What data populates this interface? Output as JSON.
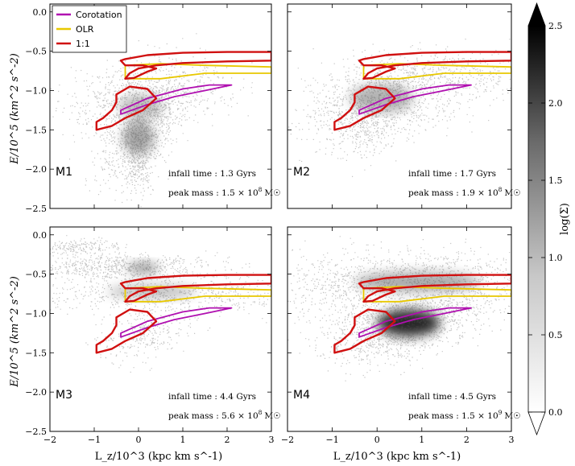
{
  "chart_data": {
    "type": "scatter",
    "layout": "2x2 panels, shared axes",
    "xlabel": "L_z/10^3 (kpc km s^-1)",
    "ylabel": "E/10^5 (km^2 s^-2)",
    "xlim": [
      -2,
      3
    ],
    "ylim": [
      -2.5,
      0.1
    ],
    "xticks": [
      -2,
      -1,
      0,
      1,
      2,
      3
    ],
    "yticks": [
      0.0,
      -0.5,
      -1.0,
      -1.5,
      -2.0,
      -2.5
    ],
    "legend": {
      "placement": "top-left of first panel",
      "entries": [
        {
          "label": "Corotation",
          "color": "#b010b0"
        },
        {
          "label": "OLR",
          "color": "#e8c800"
        },
        {
          "label": "1:1",
          "color": "#d01010"
        }
      ]
    },
    "colorbar": {
      "label": "log(Σ)",
      "range": [
        0.0,
        2.5
      ],
      "ticks": [
        0.0,
        0.5,
        1.0,
        1.5,
        2.0,
        2.5
      ],
      "colormap": "gray_r",
      "extend": "both"
    },
    "resonance_contours": {
      "corotation": [
        [
          -0.4,
          -1.25
        ],
        [
          0.2,
          -1.1
        ],
        [
          1.0,
          -0.98
        ],
        [
          1.6,
          -0.93
        ],
        [
          2.1,
          -0.93
        ],
        [
          1.5,
          -1.0
        ],
        [
          0.8,
          -1.08
        ],
        [
          0.2,
          -1.18
        ],
        [
          -0.4,
          -1.3
        ]
      ],
      "olr": [
        [
          -0.3,
          -0.68
        ],
        [
          0.5,
          -0.66
        ],
        [
          1.5,
          -0.68
        ],
        [
          3.0,
          -0.7
        ],
        [
          3.0,
          -0.78
        ],
        [
          1.5,
          -0.78
        ],
        [
          0.5,
          -0.85
        ],
        [
          -0.3,
          -0.85
        ]
      ],
      "one_to_one_upper": [
        [
          -0.3,
          -0.6
        ],
        [
          0.2,
          -0.55
        ],
        [
          1.0,
          -0.52
        ],
        [
          2.0,
          -0.51
        ],
        [
          3.0,
          -0.51
        ],
        [
          3.0,
          -0.62
        ],
        [
          2.0,
          -0.63
        ],
        [
          1.0,
          -0.65
        ],
        [
          0.4,
          -0.68
        ],
        [
          0.0,
          -0.72
        ],
        [
          -0.2,
          -0.78
        ],
        [
          -0.3,
          -0.85
        ],
        [
          -0.1,
          -0.84
        ],
        [
          0.2,
          -0.76
        ],
        [
          0.4,
          -0.72
        ],
        [
          0.1,
          -0.68
        ],
        [
          -0.3,
          -0.68
        ],
        [
          -0.4,
          -0.62
        ]
      ],
      "one_to_one_lower": [
        [
          -0.5,
          -1.05
        ],
        [
          -0.2,
          -0.95
        ],
        [
          0.2,
          -0.98
        ],
        [
          0.4,
          -1.1
        ],
        [
          0.1,
          -1.25
        ],
        [
          -0.3,
          -1.35
        ],
        [
          -0.6,
          -1.45
        ],
        [
          -0.95,
          -1.5
        ],
        [
          -0.95,
          -1.4
        ],
        [
          -0.8,
          -1.35
        ],
        [
          -0.6,
          -1.25
        ],
        [
          -0.5,
          -1.15
        ]
      ]
    },
    "panels": [
      {
        "name": "M1",
        "infall_label": "infall time",
        "infall_value": "1.3 Gyrs",
        "peak_label": "peak mass",
        "peak_value": "1.5 × 10",
        "peak_exp": "8",
        "peak_unit": "M☉"
      },
      {
        "name": "M2",
        "infall_label": "infall time",
        "infall_value": "1.7 Gyrs",
        "peak_label": "peak mass",
        "peak_value": "1.9 × 10",
        "peak_exp": "8",
        "peak_unit": "M☉"
      },
      {
        "name": "M3",
        "infall_label": "infall time",
        "infall_value": "4.4 Gyrs",
        "peak_label": "peak mass",
        "peak_value": "5.6 × 10",
        "peak_exp": "8",
        "peak_unit": "M☉"
      },
      {
        "name": "M4",
        "infall_label": "infall time",
        "infall_value": "4.5 Gyrs",
        "peak_label": "peak mass",
        "peak_value": "1.5 × 10",
        "peak_exp": "9",
        "peak_unit": "M☉"
      }
    ]
  }
}
